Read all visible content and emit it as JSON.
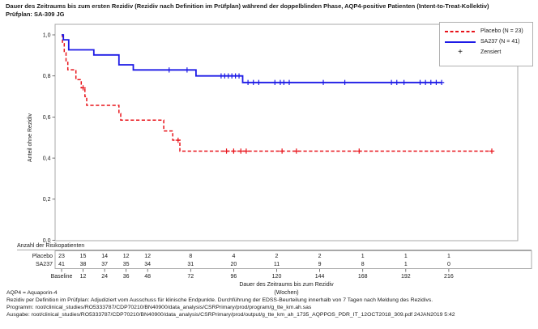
{
  "title": {
    "line1": "Dauer des Zeitraums bis zum ersten Rezidiv (Rezidiv nach Definition im Prüfplan) während der doppelblinden Phase, AQP4-positive Patienten (Intent-to-Treat-Kollektiv)",
    "line2": "Prüfplan: SA-309 JG"
  },
  "colors": {
    "placebo": "#e8131a",
    "sa237": "#1d1ae6",
    "frame": "#a8a8a8",
    "text": "#1a1a1a"
  },
  "legend": {
    "items": [
      {
        "label": "Placebo (N = 23)",
        "style": "dashed",
        "color_key": "placebo"
      },
      {
        "label": "SA237 (N = 41)",
        "style": "solid",
        "color_key": "sa237"
      },
      {
        "label": "Zensiert",
        "style": "plus"
      }
    ],
    "plus_symbol": "+"
  },
  "chart_data": {
    "type": "line",
    "subtype": "kaplan-meier-step",
    "title": "Dauer des Zeitraums bis zum ersten Rezidiv während der doppelblinden Phase",
    "xlabel": "Dauer des Zeitraums bis zum Rezidiv",
    "xlabel_unit": "(Wochen)",
    "ylabel": "Anteil ohne Rezidiv",
    "xlim": [
      0,
      254
    ],
    "ylim": [
      0,
      1.0
    ],
    "grid": false,
    "legend_position": "top-right",
    "x_ticks": [
      0,
      12,
      24,
      36,
      48,
      72,
      96,
      120,
      144,
      168,
      192,
      216
    ],
    "x_tick_labels": [
      "Baseline",
      "12",
      "24",
      "36",
      "48",
      "72",
      "96",
      "120",
      "144",
      "168",
      "192",
      "216"
    ],
    "y_ticks": [
      0,
      0.2,
      0.4,
      0.6,
      0.8,
      1.0
    ],
    "y_tick_labels": [
      "0,0",
      "0,2",
      "0,4",
      "0,6",
      "0,8",
      "1,0"
    ],
    "series": [
      {
        "name": "Placebo (N = 23)",
        "color_key": "placebo",
        "line": "dashed",
        "steps": [
          [
            0,
            1.0
          ],
          [
            0.5,
            0.957
          ],
          [
            1.5,
            0.913
          ],
          [
            2.5,
            0.87
          ],
          [
            3.5,
            0.83
          ],
          [
            8,
            0.782
          ],
          [
            11,
            0.742
          ],
          [
            13,
            0.7
          ],
          [
            14,
            0.657
          ],
          [
            32,
            0.617
          ],
          [
            33,
            0.585
          ],
          [
            57,
            0.532
          ],
          [
            62,
            0.487
          ],
          [
            66,
            0.434
          ]
        ],
        "end_week": 240,
        "censored": [
          [
            12,
            0.742
          ],
          [
            65,
            0.487
          ],
          [
            92,
            0.434
          ],
          [
            96,
            0.434
          ],
          [
            100,
            0.434
          ],
          [
            103,
            0.434
          ],
          [
            123,
            0.434
          ],
          [
            131,
            0.434
          ],
          [
            166,
            0.434
          ],
          [
            240,
            0.434
          ]
        ]
      },
      {
        "name": "SA237 (N = 41)",
        "color_key": "sa237",
        "line": "solid",
        "steps": [
          [
            0,
            1.0
          ],
          [
            1,
            0.976
          ],
          [
            4,
            0.927
          ],
          [
            18,
            0.902
          ],
          [
            32,
            0.854
          ],
          [
            40,
            0.829
          ],
          [
            75,
            0.8
          ],
          [
            101,
            0.768
          ]
        ],
        "end_week": 212,
        "censored": [
          [
            60,
            0.829
          ],
          [
            70,
            0.829
          ],
          [
            89,
            0.8
          ],
          [
            91,
            0.8
          ],
          [
            93,
            0.8
          ],
          [
            95,
            0.8
          ],
          [
            97,
            0.8
          ],
          [
            99,
            0.8
          ],
          [
            104,
            0.768
          ],
          [
            107,
            0.768
          ],
          [
            110,
            0.768
          ],
          [
            119,
            0.768
          ],
          [
            122,
            0.768
          ],
          [
            124,
            0.768
          ],
          [
            127,
            0.768
          ],
          [
            146,
            0.768
          ],
          [
            158,
            0.768
          ],
          [
            184,
            0.768
          ],
          [
            187,
            0.768
          ],
          [
            191,
            0.768
          ],
          [
            200,
            0.768
          ],
          [
            203,
            0.768
          ],
          [
            206,
            0.768
          ],
          [
            209,
            0.768
          ],
          [
            212,
            0.768
          ]
        ]
      }
    ]
  },
  "risk_table": {
    "label": "Anzahl der Risikopatienten",
    "rows": [
      {
        "name": "Placebo",
        "counts": [
          23,
          15,
          14,
          12,
          12,
          8,
          4,
          2,
          2,
          1,
          1,
          1
        ]
      },
      {
        "name": "SA237",
        "counts": [
          41,
          38,
          37,
          35,
          34,
          31,
          20,
          11,
          9,
          8,
          1,
          0
        ]
      }
    ]
  },
  "footer": {
    "aqp4": "AQP4 = Aquaporin-4",
    "rezidiv": "Rezidiv per Definition im Prüfplan: Adjudiziert vom Ausschuss für klinische Endpunkte. Durchführung der EDSS-Beurteilung innerhalb von 7 Tagen nach Meldung des Rezidivs.",
    "programm": "Programm: root/clinical_studies/RO5333787/CDP70210/BN40900/data_analysis/CSRPrimary/prod/program/g_tte_km.ah.sas",
    "ausgabe": "Ausgabe: root/clinical_studies/RO5333787/CDP70210/BN40900/data_analysis/CSRPrimary/prod/output/g_tte_km_ah_1735_AQPPOS_PDR_IT_12OCT2018_309.pdf 24JAN2019 5:42"
  }
}
